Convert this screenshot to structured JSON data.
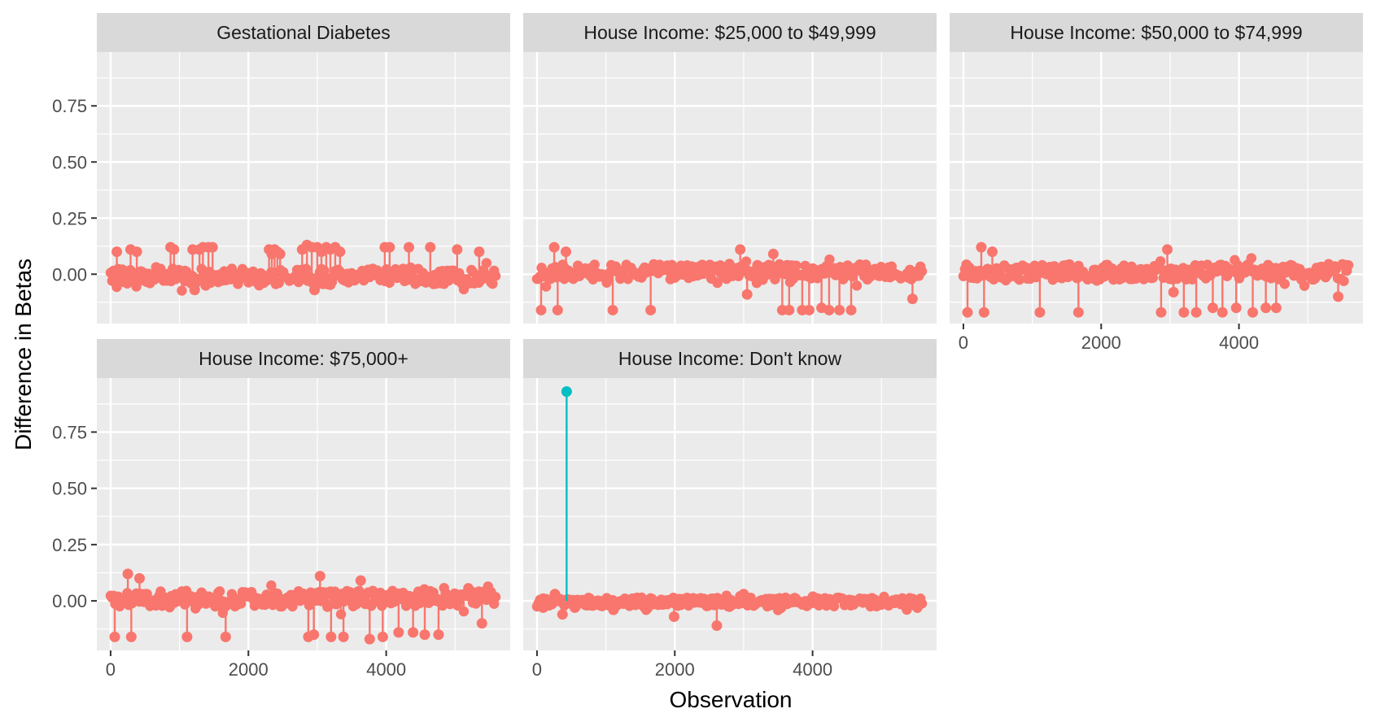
{
  "chart_data": {
    "type": "scatter",
    "style": "lollipop / stem plot (faceted)",
    "xlabel": "Observation",
    "ylabel": "Difference in Betas",
    "xlim": [
      -200,
      5800
    ],
    "ylim": [
      -0.22,
      0.99
    ],
    "x_ticks": [
      0,
      2000,
      4000
    ],
    "x_tick_labels": [
      "0",
      "2000",
      "4000"
    ],
    "y_ticks": [
      0.0,
      0.25,
      0.5,
      0.75
    ],
    "y_tick_labels": [
      "0.00",
      "0.25",
      "0.50",
      "0.75"
    ],
    "grid": true,
    "colors": {
      "normal": "#F8766D",
      "flagged": "#00BFC4",
      "panel_bg": "#EBEBEB",
      "strip_bg": "#D9D9D9",
      "grid": "#FFFFFF"
    },
    "facets": [
      {
        "title": "Gestational Diabetes",
        "points": [
          [
            90,
            0.1
          ],
          [
            170,
            0.02
          ],
          [
            290,
            0.11
          ],
          [
            380,
            0.1
          ],
          [
            520,
            -0.03
          ],
          [
            870,
            0.12
          ],
          [
            920,
            0.11
          ],
          [
            1080,
            -0.03
          ],
          [
            1190,
            0.11
          ],
          [
            1220,
            -0.07
          ],
          [
            1290,
            0.11
          ],
          [
            1340,
            0.12
          ],
          [
            1380,
            -0.05
          ],
          [
            1420,
            0.12
          ],
          [
            1480,
            0.12
          ],
          [
            1550,
            -0.02
          ],
          [
            2300,
            0.11
          ],
          [
            2340,
            0.09
          ],
          [
            2380,
            0.11
          ],
          [
            2420,
            0.1
          ],
          [
            2460,
            0.09
          ],
          [
            2780,
            0.11
          ],
          [
            2850,
            0.13
          ],
          [
            2920,
            0.12
          ],
          [
            2960,
            -0.07
          ],
          [
            3000,
            0.12
          ],
          [
            3060,
            0.1
          ],
          [
            3130,
            0.12
          ],
          [
            3190,
            0.11
          ],
          [
            3260,
            0.12
          ],
          [
            3330,
            0.1
          ],
          [
            3420,
            -0.03
          ],
          [
            3980,
            0.12
          ],
          [
            4050,
            0.12
          ],
          [
            4330,
            0.12
          ],
          [
            4640,
            0.12
          ],
          [
            5030,
            0.11
          ],
          [
            5350,
            0.1
          ],
          [
            5400,
            -0.02
          ]
        ]
      },
      {
        "title": "House Income: $25,000 to $49,999",
        "points": [
          [
            60,
            -0.16
          ],
          [
            250,
            0.12
          ],
          [
            300,
            -0.16
          ],
          [
            420,
            0.1
          ],
          [
            1100,
            -0.16
          ],
          [
            1650,
            -0.16
          ],
          [
            2300,
            0.03
          ],
          [
            2950,
            0.11
          ],
          [
            3050,
            -0.09
          ],
          [
            3200,
            0.04
          ],
          [
            3430,
            0.09
          ],
          [
            3560,
            -0.16
          ],
          [
            3660,
            -0.16
          ],
          [
            3850,
            -0.16
          ],
          [
            3950,
            -0.16
          ],
          [
            4130,
            -0.15
          ],
          [
            4240,
            -0.16
          ],
          [
            4390,
            -0.16
          ],
          [
            4560,
            -0.16
          ],
          [
            5450,
            -0.11
          ]
        ]
      },
      {
        "title": "House Income: $50,000 to $74,999",
        "points": [
          [
            60,
            -0.17
          ],
          [
            260,
            0.12
          ],
          [
            300,
            -0.17
          ],
          [
            420,
            0.1
          ],
          [
            1110,
            -0.17
          ],
          [
            1670,
            -0.17
          ],
          [
            2870,
            -0.17
          ],
          [
            2960,
            0.11
          ],
          [
            3050,
            -0.08
          ],
          [
            3200,
            -0.17
          ],
          [
            3380,
            -0.17
          ],
          [
            3620,
            -0.15
          ],
          [
            3760,
            -0.17
          ],
          [
            3960,
            -0.15
          ],
          [
            4200,
            -0.17
          ],
          [
            4390,
            -0.15
          ],
          [
            4540,
            -0.15
          ],
          [
            5440,
            -0.1
          ]
        ]
      },
      {
        "title": "House Income: $75,000+",
        "points": [
          [
            60,
            -0.16
          ],
          [
            250,
            0.12
          ],
          [
            300,
            -0.16
          ],
          [
            420,
            0.1
          ],
          [
            1110,
            -0.16
          ],
          [
            1670,
            -0.16
          ],
          [
            2870,
            -0.16
          ],
          [
            2950,
            -0.15
          ],
          [
            3040,
            0.11
          ],
          [
            3200,
            -0.16
          ],
          [
            3380,
            -0.16
          ],
          [
            3630,
            0.09
          ],
          [
            3760,
            -0.17
          ],
          [
            3950,
            -0.16
          ],
          [
            4180,
            -0.14
          ],
          [
            4390,
            -0.14
          ],
          [
            4560,
            -0.15
          ],
          [
            4760,
            -0.15
          ],
          [
            5390,
            -0.1
          ]
        ]
      },
      {
        "title": "House Income: Don't know",
        "points": [
          [
            430,
            0.93,
            "flagged"
          ],
          [
            90,
            -0.03
          ],
          [
            260,
            0.03
          ],
          [
            370,
            -0.06
          ],
          [
            550,
            -0.03
          ],
          [
            1110,
            -0.04
          ],
          [
            1990,
            -0.07
          ],
          [
            2610,
            -0.11
          ],
          [
            3000,
            0.03
          ]
        ]
      }
    ]
  }
}
